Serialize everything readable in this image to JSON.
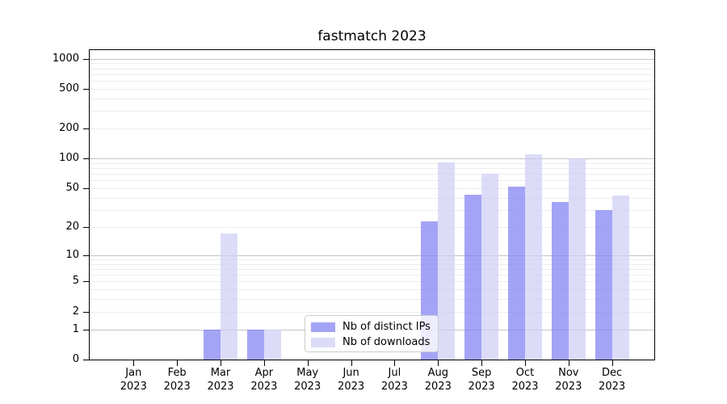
{
  "title": "fastmatch 2023",
  "chart_data": {
    "type": "bar",
    "title": "fastmatch 2023",
    "x_tick_second_line": "2023",
    "categories": [
      "Jan",
      "Feb",
      "Mar",
      "Apr",
      "May",
      "Jun",
      "Jul",
      "Aug",
      "Sep",
      "Oct",
      "Nov",
      "Dec"
    ],
    "series": [
      {
        "name": "Nb of distinct IPs",
        "key": "distinct-ips",
        "color": "#7d7df2",
        "fill_opacity": 0.7,
        "values": [
          0,
          0,
          1,
          1,
          0,
          0,
          0,
          23,
          43,
          52,
          36,
          30
        ]
      },
      {
        "name": "Nb of downloads",
        "key": "downloads",
        "color": "#cdcdf7",
        "fill_opacity": 0.7,
        "values": [
          0,
          0,
          17,
          1,
          0,
          0,
          0,
          92,
          70,
          110,
          101,
          42
        ]
      }
    ],
    "yscale": "symlog (ln(1+v))",
    "ylim": [
      0,
      1217
    ],
    "yticks": [
      0,
      1,
      2,
      5,
      10,
      20,
      50,
      100,
      200,
      500,
      1000
    ],
    "grid": {
      "major_lines": [
        1,
        10,
        100,
        1000
      ],
      "minor_multipliers": [
        2,
        3,
        4,
        5,
        6,
        7,
        8,
        9
      ],
      "major_color": "#c4c4c4",
      "minor_color": "#ededed"
    },
    "legend": {
      "position": "lower center",
      "entries": [
        "Nb of distinct IPs",
        "Nb of downloads"
      ]
    }
  }
}
